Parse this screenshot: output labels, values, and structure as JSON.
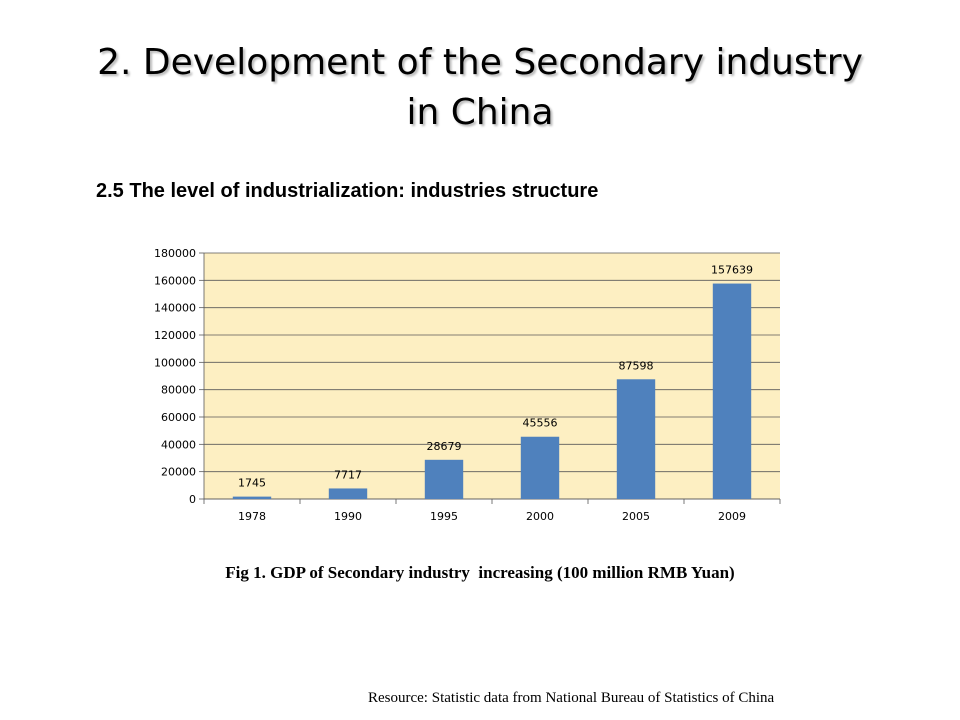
{
  "title_line1": "2. Development of the Secondary industry",
  "title_line2": "in China",
  "subtitle": "2.5 The level of industrialization: industries structure",
  "caption": "Fig 1. GDP of Secondary industry  increasing (100 million RMB Yuan)",
  "source": "Resource: Statistic data from National Bureau of Statistics of China",
  "colors": {
    "plot_background": "#FDEFC2",
    "bar": "#4F81BD",
    "grid": "#595959"
  },
  "chart_data": {
    "type": "bar",
    "categories": [
      "1978",
      "1990",
      "1995",
      "2000",
      "2005",
      "2009"
    ],
    "values": [
      1745,
      7717,
      28679,
      45556,
      87598,
      157639
    ],
    "data_labels": [
      "1745",
      "7717",
      "28679",
      "45556",
      "87598",
      "157639"
    ],
    "title": "",
    "xlabel": "",
    "ylabel": "",
    "ylim": [
      0,
      180000
    ],
    "yticks": [
      0,
      20000,
      40000,
      60000,
      80000,
      100000,
      120000,
      140000,
      160000,
      180000
    ],
    "grid": true,
    "legend": "none"
  }
}
